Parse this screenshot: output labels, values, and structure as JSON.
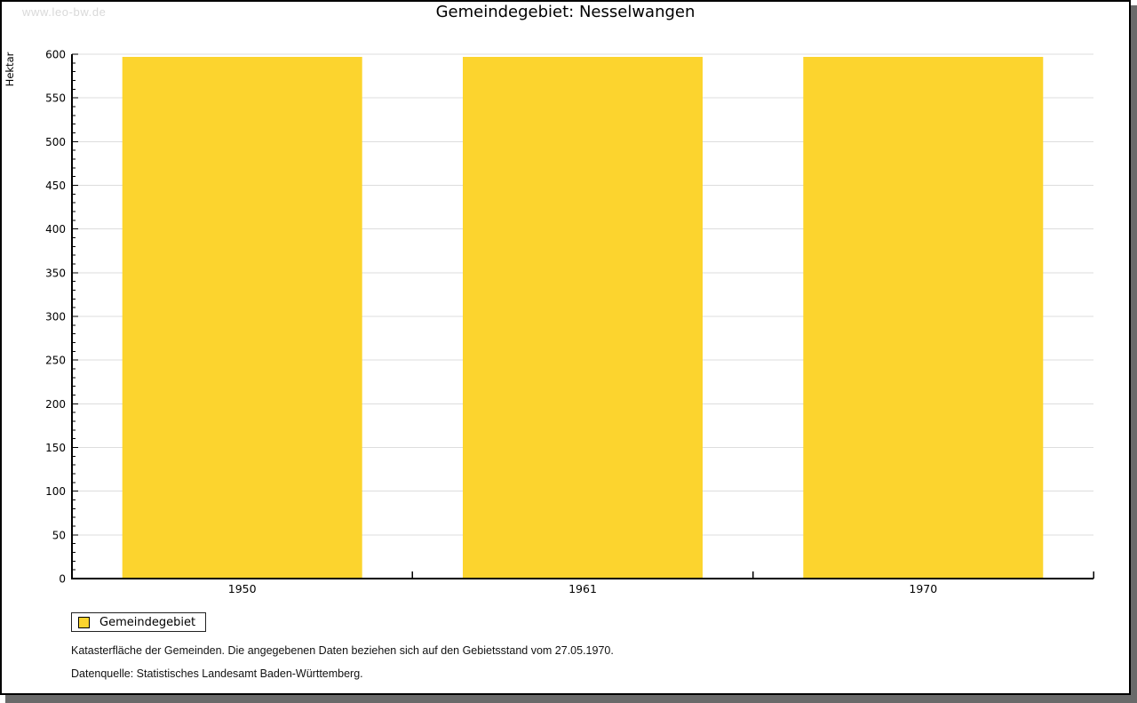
{
  "page": {
    "watermark": "www.leo-bw.de",
    "title": "Gemeindegebiet: Nesselwangen"
  },
  "legend": {
    "label": "Gemeindegebiet"
  },
  "footnotes": {
    "line1": "Katasterfläche der Gemeinden. Die angegebenen Daten beziehen sich auf den Gebietsstand vom 27.05.1970.",
    "line2": "Datenquelle: Statistisches Landesamt Baden-Württemberg."
  },
  "chart_data": {
    "type": "bar",
    "title": "Gemeindegebiet: Nesselwangen",
    "categories": [
      "1950",
      "1961",
      "1970"
    ],
    "series": [
      {
        "name": "Gemeindegebiet",
        "values": [
          597,
          597,
          597
        ],
        "color": "#fcd42e"
      }
    ],
    "xlabel": "",
    "ylabel": "Hektar",
    "unit": "Hektar",
    "ylim": [
      0,
      600
    ],
    "y_major_step": 50,
    "y_minor_step": 10,
    "grid": true,
    "legend_position": "bottom-left"
  },
  "colors": {
    "bar": "#fcd42e",
    "grid": "#dddddd",
    "axis": "#000000",
    "text": "#000000",
    "watermark": "#d9d9d9",
    "shadow": "#6a6a6a",
    "background": "#ffffff"
  }
}
